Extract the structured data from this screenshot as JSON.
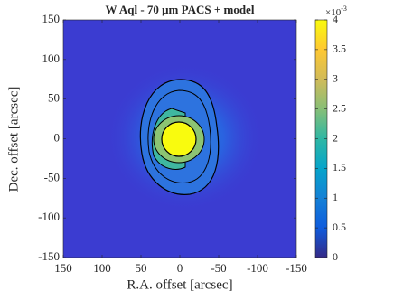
{
  "chart_data": {
    "type": "image",
    "title": "W Aql - 70 μm PACS + model",
    "xlabel": "R.A. offset [arcsec]",
    "ylabel": "Dec. offset [arcsec]",
    "xlim": [
      150,
      -150
    ],
    "xticks": [
      150,
      100,
      50,
      0,
      -50,
      -100,
      -150
    ],
    "ylim": [
      -150,
      150
    ],
    "yticks": [
      -150,
      -100,
      -50,
      0,
      50,
      100,
      150
    ],
    "colorbar": {
      "lim": [
        0,
        4
      ],
      "ticks": [
        0,
        0.5,
        1,
        1.5,
        2,
        2.5,
        3,
        3.5,
        4
      ],
      "multiplier": "×10",
      "exponent": "-3",
      "colors": [
        "#352a87",
        "#0f5cdd",
        "#1481d6",
        "#06a4ca",
        "#2eb7a4",
        "#87bf77",
        "#d1bb59",
        "#fec832",
        "#f9fb0e"
      ]
    }
  }
}
